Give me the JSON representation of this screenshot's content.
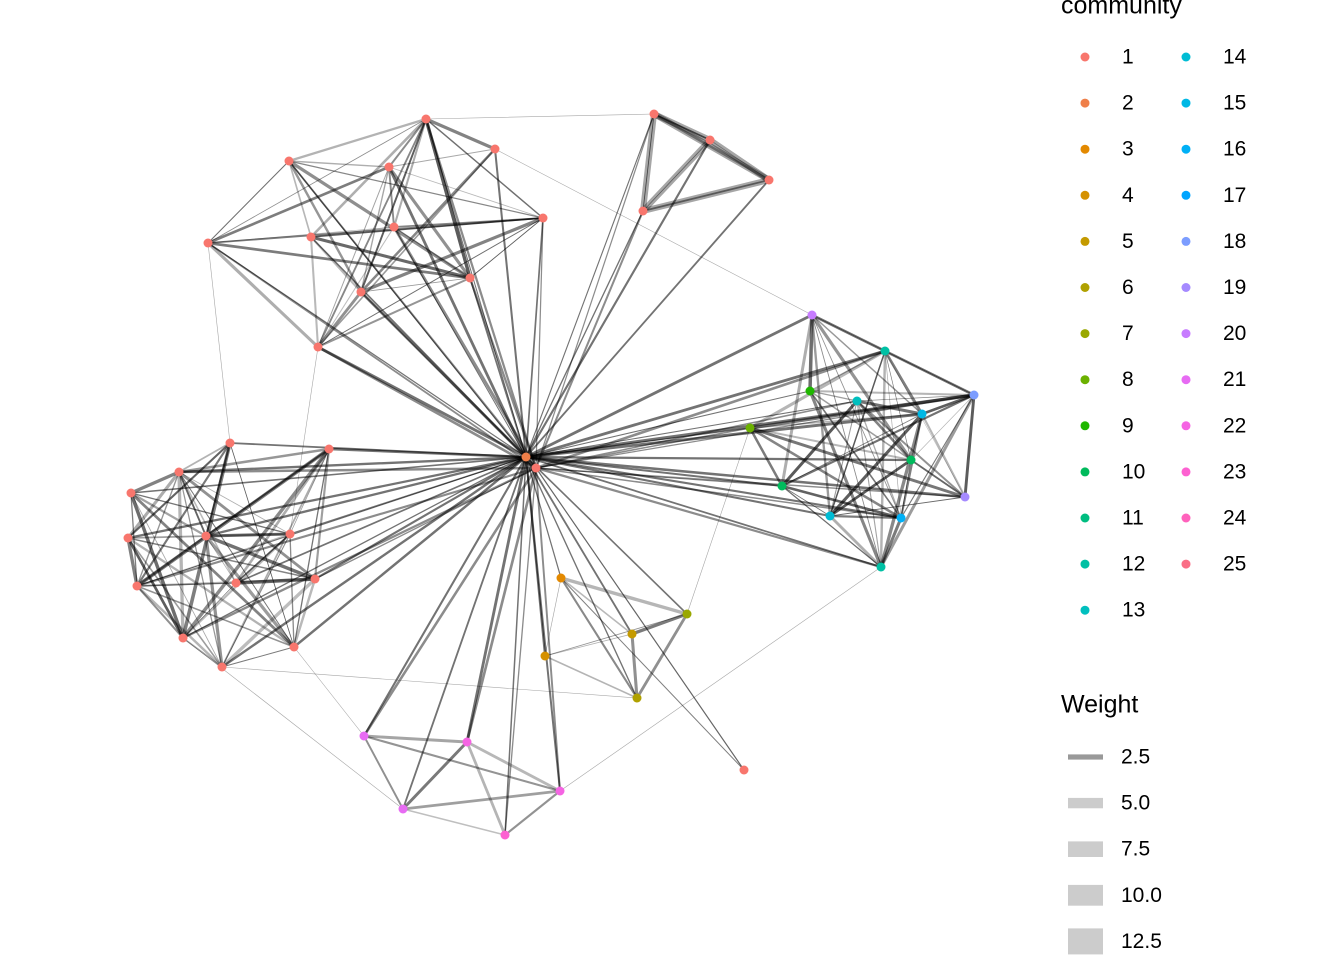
{
  "legend": {
    "community": {
      "title": "community",
      "items": [
        {
          "label": "1",
          "color": "#F8766D"
        },
        {
          "label": "2",
          "color": "#EF7F49"
        },
        {
          "label": "3",
          "color": "#E38900"
        },
        {
          "label": "4",
          "color": "#D59100"
        },
        {
          "label": "5",
          "color": "#C49A00"
        },
        {
          "label": "6",
          "color": "#B0A100"
        },
        {
          "label": "7",
          "color": "#99A800"
        },
        {
          "label": "8",
          "color": "#6BB100"
        },
        {
          "label": "9",
          "color": "#1FB700"
        },
        {
          "label": "10",
          "color": "#00BA5C"
        },
        {
          "label": "11",
          "color": "#00BD80"
        },
        {
          "label": "12",
          "color": "#00C0A4"
        },
        {
          "label": "13",
          "color": "#00BFBE"
        },
        {
          "label": "14",
          "color": "#00BCD4"
        },
        {
          "label": "15",
          "color": "#00B8E5"
        },
        {
          "label": "16",
          "color": "#00B0F6"
        },
        {
          "label": "17",
          "color": "#00A5FF"
        },
        {
          "label": "18",
          "color": "#7C9DFF"
        },
        {
          "label": "19",
          "color": "#A58AFF"
        },
        {
          "label": "20",
          "color": "#C77CFF"
        },
        {
          "label": "21",
          "color": "#E76BF3"
        },
        {
          "label": "22",
          "color": "#F564E3"
        },
        {
          "label": "23",
          "color": "#FD61D1"
        },
        {
          "label": "24",
          "color": "#FF62BC"
        },
        {
          "label": "25",
          "color": "#FA6E86"
        }
      ]
    },
    "weight": {
      "title": "Weight",
      "items": [
        2.5,
        {
          "value": 5,
          "label": "5.0"
        },
        7.5,
        {
          "value": 10,
          "label": "10.0"
        },
        12.5
      ]
    }
  }
}
